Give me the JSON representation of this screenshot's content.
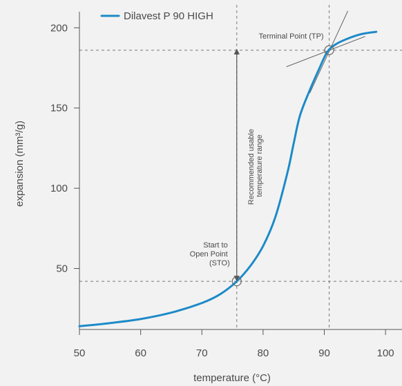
{
  "colors": {
    "background": "#f2f2f2",
    "series": "#1c8ac8",
    "axis": "#555555",
    "reference": "#777777",
    "text": "#4a4a4a"
  },
  "chart_data": {
    "type": "line",
    "title": "",
    "xlabel": "temperature (°C)",
    "ylabel": "expansion (mm³/g)",
    "xlim": [
      50,
      101
    ],
    "ylim": [
      12,
      210
    ],
    "xticks": [
      50,
      60,
      70,
      80,
      90,
      100
    ],
    "yticks": [
      50,
      100,
      150,
      200
    ],
    "grid": false,
    "legend": {
      "position": "top-left",
      "entries": [
        "Dilavest P 90 HIGH"
      ]
    },
    "series": [
      {
        "name": "Dilavest P 90 HIGH",
        "color": "#1c8ac8",
        "points": [
          [
            50,
            14
          ],
          [
            55,
            16
          ],
          [
            60,
            18.5
          ],
          [
            65,
            22.5
          ],
          [
            70,
            28.5
          ],
          [
            73,
            34
          ],
          [
            75.7,
            42
          ],
          [
            78,
            52
          ],
          [
            80,
            64
          ],
          [
            82,
            82
          ],
          [
            84,
            110
          ],
          [
            85,
            128
          ],
          [
            86,
            145
          ],
          [
            87.5,
            160
          ],
          [
            89,
            173
          ],
          [
            90.5,
            185
          ],
          [
            92,
            190
          ],
          [
            94,
            193.5
          ],
          [
            96,
            196
          ],
          [
            98.5,
            197.5
          ]
        ]
      }
    ],
    "reference_lines": {
      "vertical_x": [
        75.7,
        90.8
      ],
      "horizontal_y": [
        42,
        186
      ]
    },
    "annotations": {
      "sto": {
        "lines": [
          "Start to",
          "Open Point",
          "(STO)"
        ],
        "x": 75.7,
        "y": 42
      },
      "tp": {
        "label": "Terminal Point (TP)",
        "x": 90.8,
        "y": 186
      },
      "range": {
        "lines": [
          "Recommended usable",
          "temperature range"
        ],
        "from_y": 42,
        "to_y": 186
      }
    }
  }
}
